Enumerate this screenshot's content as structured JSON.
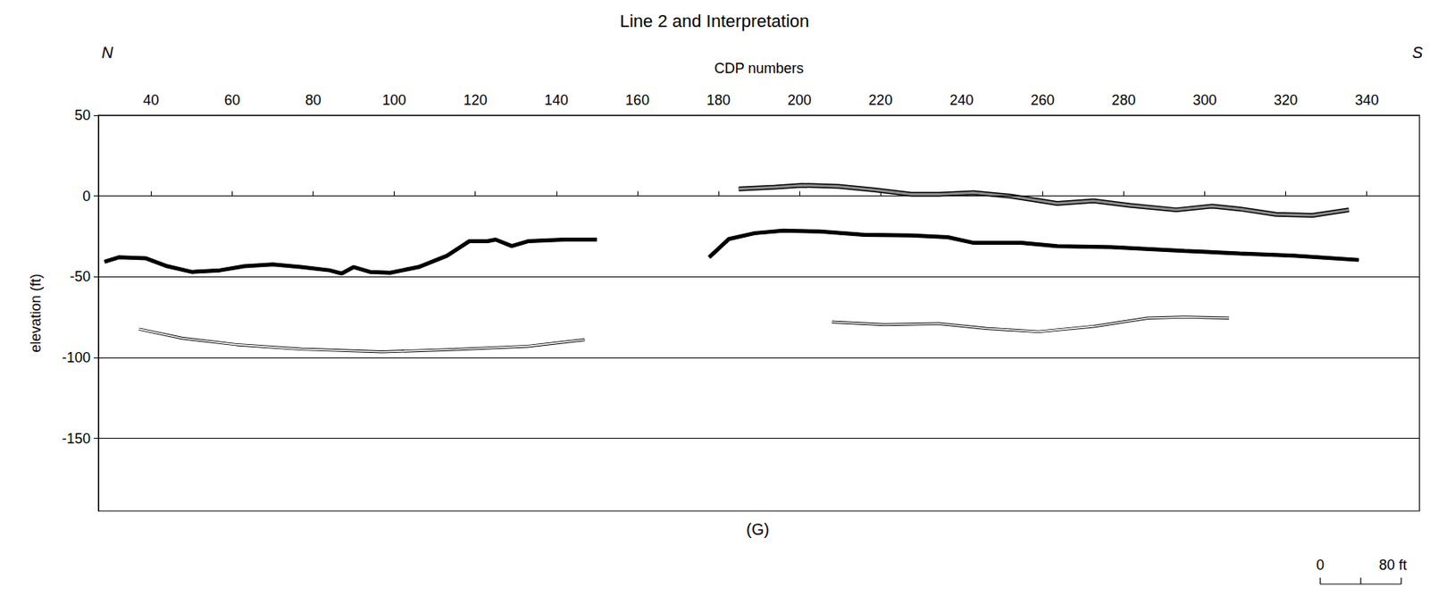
{
  "chart_data": {
    "type": "line",
    "title": "Line 2 and Interpretation",
    "x_label": "CDP numbers",
    "y_label": "elevation (ft)",
    "xlim": [
      27,
      353
    ],
    "xticks": [
      40,
      60,
      80,
      100,
      120,
      140,
      160,
      180,
      200,
      220,
      240,
      260,
      280,
      300,
      320,
      340
    ],
    "ylim": [
      -195,
      50
    ],
    "yticks": [
      50,
      0,
      -50,
      -100,
      -150
    ],
    "grid": true,
    "annotations": {
      "left": "N",
      "right": "S",
      "bottom": "(G)",
      "scale_bar": [
        "0",
        "80 ft"
      ]
    },
    "series": [
      {
        "color": "#000000",
        "line_style": "solid",
        "x": [
          28.5,
          32,
          38.6,
          44,
          50,
          57,
          63,
          70,
          77,
          84,
          87,
          90,
          94,
          99,
          106,
          113,
          118.5,
          123,
          125,
          129,
          133,
          142,
          150
        ],
        "values": [
          -40.7,
          -38,
          -38.5,
          -43.5,
          -47,
          -46,
          -43.5,
          -42.4,
          -44,
          -46,
          -48,
          -44,
          -47,
          -47.5,
          -44,
          -37,
          -28,
          -28,
          -27,
          -31,
          -28,
          -27,
          -27
        ]
      },
      {
        "color": "#000000",
        "line_style": "solid",
        "x": [
          177.7,
          182.6,
          189,
          196,
          205,
          216,
          227.6,
          236.6,
          243,
          254.6,
          263.6,
          277,
          295,
          308.6,
          322,
          338
        ],
        "values": [
          -38,
          -26.6,
          -23,
          -21.5,
          -22,
          -24,
          -24.4,
          -25.5,
          -29,
          -29,
          -31,
          -31.7,
          -34,
          -35.6,
          -37,
          -39.6
        ]
      },
      {
        "color": "#8c8c8c",
        "line_style": "solid",
        "x": [
          185,
          194,
          200.6,
          209.6,
          218.6,
          227.6,
          234.4,
          243,
          252,
          263.6,
          272.6,
          281.6,
          293,
          302,
          308.6,
          317.6,
          326.6,
          335.6
        ],
        "values": [
          4.4,
          5.5,
          6.6,
          6,
          3.8,
          1,
          1,
          2,
          -0.1,
          -4.6,
          -3,
          -5.8,
          -8.6,
          -6.3,
          -8,
          -11.4,
          -12,
          -8.6
        ]
      },
      {
        "color": "#ffffff",
        "line_style": "solid",
        "x": [
          37,
          47.6,
          61,
          77,
          97,
          115,
          133,
          147
        ],
        "values": [
          -82.4,
          -88,
          -92,
          -94.8,
          -96.5,
          -95,
          -93,
          -89
        ]
      },
      {
        "color": "#ffffff",
        "line_style": "solid",
        "x": [
          208,
          221,
          234.4,
          246,
          259,
          272.6,
          286,
          295,
          306
        ],
        "values": [
          -78,
          -79.6,
          -79,
          -82,
          -84,
          -80.7,
          -75.6,
          -75,
          -75.6
        ]
      }
    ]
  }
}
